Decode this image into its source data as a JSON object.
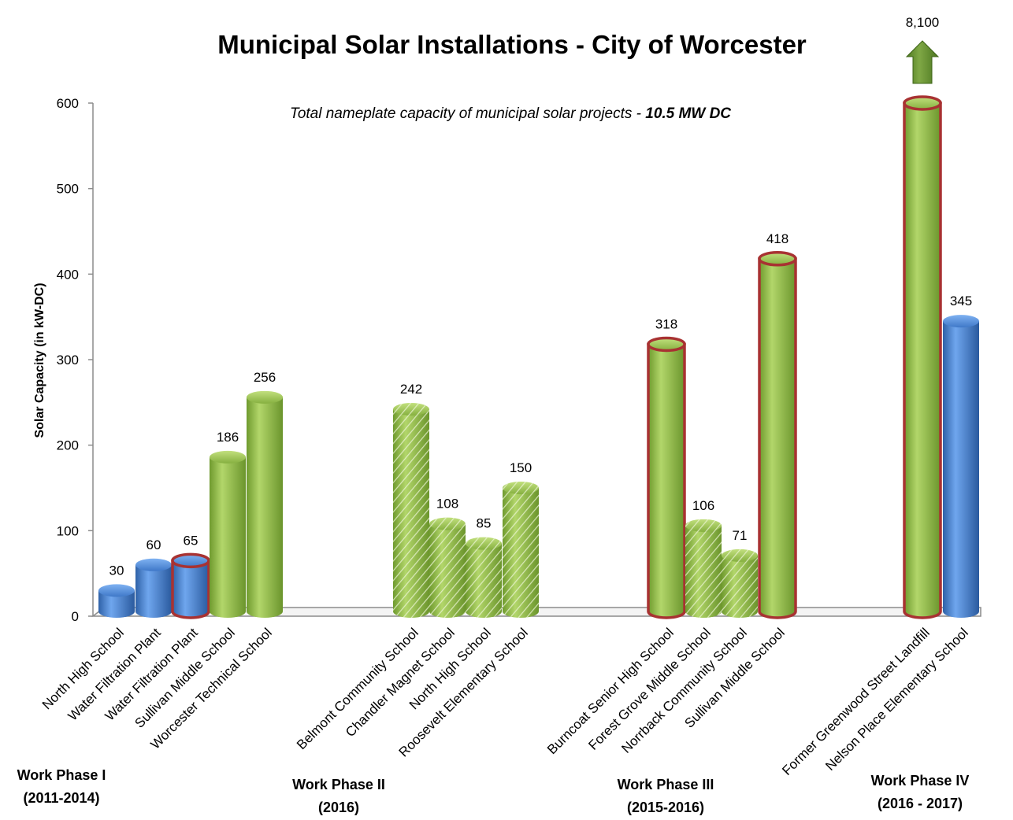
{
  "chart_data": {
    "type": "bar",
    "title": "Municipal Solar Installations - City of Worcester",
    "subtitle_prefix": "Total nameplate capacity of municipal solar projects - ",
    "subtitle_value": "10.5 MW DC",
    "ylabel": "Solar Capacity (in kW-DC)",
    "xlabel": "",
    "ylim": [
      0,
      600
    ],
    "yticks": [
      0,
      100,
      200,
      300,
      400,
      500,
      600
    ],
    "grid": false,
    "colors": {
      "blue": "#4a86d8",
      "green": "#8fb84a",
      "outline": "#a83232",
      "arrow": "#5f8a2c"
    },
    "phases": [
      {
        "name": "Work Phase I",
        "years": "(2011-2014)",
        "bars": [
          {
            "category": "North High School",
            "value": 30,
            "label": "30",
            "color": "blue",
            "pattern": "solid",
            "outline": false
          },
          {
            "category": "Water Filtration Plant",
            "value": 60,
            "label": "60",
            "color": "blue",
            "pattern": "solid",
            "outline": false
          },
          {
            "category": "Water Filtration Plant",
            "value": 65,
            "label": "65",
            "color": "blue",
            "pattern": "solid",
            "outline": true
          },
          {
            "category": "Sullivan Middle School",
            "value": 186,
            "label": "186",
            "color": "green",
            "pattern": "solid",
            "outline": false
          },
          {
            "category": "Worcester Technical School",
            "value": 256,
            "label": "256",
            "color": "green",
            "pattern": "solid",
            "outline": false
          }
        ]
      },
      {
        "name": "Work Phase II",
        "years": "(2016)",
        "bars": [
          {
            "category": "Belmont Community School",
            "value": 242,
            "label": "242",
            "color": "green",
            "pattern": "hatched",
            "outline": false
          },
          {
            "category": "Chandler Magnet School",
            "value": 108,
            "label": "108",
            "color": "green",
            "pattern": "hatched",
            "outline": false
          },
          {
            "category": "North High School",
            "value": 85,
            "label": "85",
            "color": "green",
            "pattern": "hatched",
            "outline": false
          },
          {
            "category": "Roosevelt Elementary School",
            "value": 150,
            "label": "150",
            "color": "green",
            "pattern": "hatched",
            "outline": false
          }
        ]
      },
      {
        "name": "Work Phase III",
        "years": "(2015-2016)",
        "bars": [
          {
            "category": "Burncoat Senior High School",
            "value": 318,
            "label": "318",
            "color": "green",
            "pattern": "solid",
            "outline": true
          },
          {
            "category": "Forest Grove Middle School",
            "value": 106,
            "label": "106",
            "color": "green",
            "pattern": "hatched",
            "outline": false
          },
          {
            "category": "Norrback Community School",
            "value": 71,
            "label": "71",
            "color": "green",
            "pattern": "hatched",
            "outline": false
          },
          {
            "category": "Sullivan Middle School",
            "value": 418,
            "label": "418",
            "color": "green",
            "pattern": "solid",
            "outline": true
          }
        ]
      },
      {
        "name": "Work Phase IV",
        "years": "(2016 - 2017)",
        "bars": [
          {
            "category": "Former Greenwood Street Landfill",
            "value": 8100,
            "label": "8,100",
            "color": "green",
            "pattern": "solid",
            "outline": true,
            "truncated": true
          },
          {
            "category": "Nelson Place Elementary School",
            "value": 345,
            "label": "345",
            "color": "blue",
            "pattern": "solid",
            "outline": false
          }
        ]
      }
    ]
  }
}
